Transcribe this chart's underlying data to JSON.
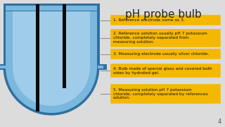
{
  "title": "pH probe bulb",
  "title_fontsize": 11,
  "background_color": "#dcdcdc",
  "annotations": [
    "1. Reference electrode same as 3.",
    "2. Reference solution usually pH 7 potassium\nchloride, completely separated from\nmeasuring solution.",
    "3. Measuring electrode usually silver chloride.",
    "4. Bulb made of special glass and covered both\nsides by hydrated gel.",
    "5. Measuring solution pH 7 potassium\nchloride, completely separated by references\nsolution."
  ],
  "annotation_box_color": "#F5B800",
  "annotation_text_color": "#111111",
  "annotation_fontsize": 4.2,
  "bulb_main_color": "#7ab8de",
  "bulb_light_color": "#9fcce8",
  "bulb_dark_color": "#4a88b8",
  "bulb_border_color": "#3070a0",
  "electrode_color": "#0a0a0a",
  "line_color": "#888888",
  "page_num": "4"
}
